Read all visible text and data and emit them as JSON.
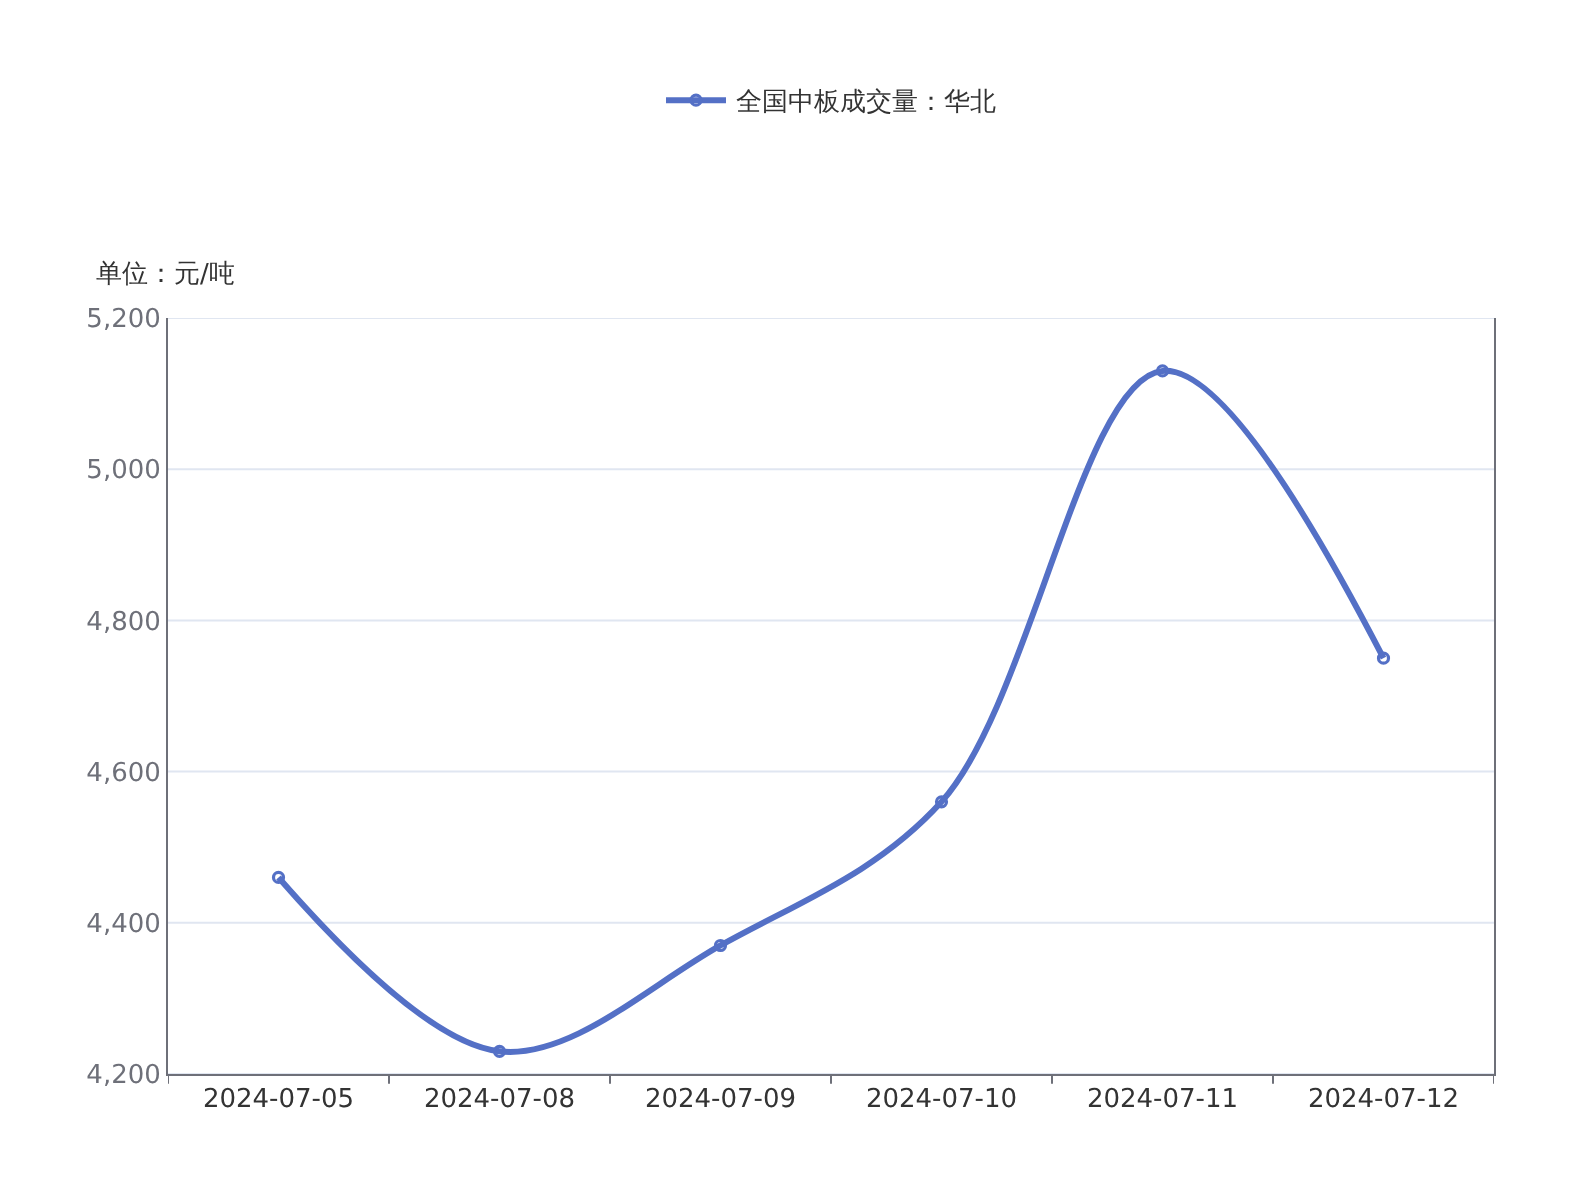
{
  "chart_data": {
    "type": "line",
    "ylabel": "单位：元/吨",
    "categories": [
      "2024-07-05",
      "2024-07-08",
      "2024-07-09",
      "2024-07-10",
      "2024-07-11",
      "2024-07-12"
    ],
    "series": [
      {
        "name": "全国中板成交量：华北",
        "color": "#5470c6",
        "values": [
          4460,
          4230,
          4370,
          4560,
          5130,
          4750
        ]
      }
    ],
    "ylim": [
      4200,
      5200
    ],
    "yticks": [
      {
        "value": 4200,
        "label": "4,200"
      },
      {
        "value": 4400,
        "label": "4,400"
      },
      {
        "value": 4600,
        "label": "4,600"
      },
      {
        "value": 4800,
        "label": "4,800"
      },
      {
        "value": 5000,
        "label": "5,000"
      },
      {
        "value": 5200,
        "label": "5,200"
      }
    ],
    "grid": "y",
    "legend": "top",
    "marker": "circle",
    "line_style": "solid"
  }
}
